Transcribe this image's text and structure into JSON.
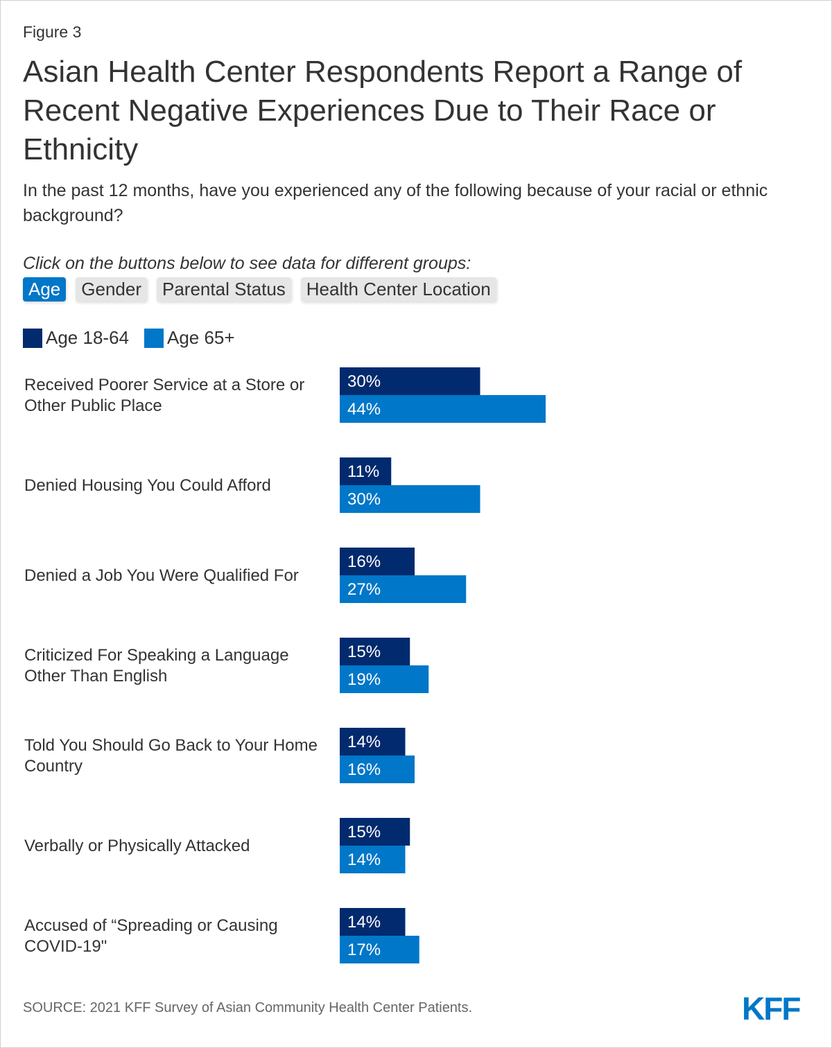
{
  "figure_label": "Figure 3",
  "title": "Asian Health Center Respondents Report a Range of Recent Negative Experiences Due to Their Race or Ethnicity",
  "subtitle": "In the past 12 months, have you experienced any of the following because of your racial or ethnic background?",
  "instruction": "Click on the buttons below to see data for different groups:",
  "buttons": [
    {
      "label": "Age",
      "active": true
    },
    {
      "label": "Gender",
      "active": false
    },
    {
      "label": "Parental Status",
      "active": false
    },
    {
      "label": "Health Center Location",
      "active": false
    }
  ],
  "source": "SOURCE: 2021 KFF Survey of Asian Community Health Center Patients.",
  "logo": "KFF",
  "colors": {
    "series1": "#022a6e",
    "series2": "#0077c8"
  },
  "chart_data": {
    "type": "bar",
    "orientation": "horizontal",
    "categories": [
      "Received Poorer Service at a Store or Other Public Place",
      "Denied Housing You Could Afford",
      "Denied a Job You Were Qualified For",
      "Criticized For Speaking a Language Other Than English",
      "Told You Should Go Back to Your Home Country",
      "Verbally or Physically Attacked",
      "Accused of “Spreading or Causing COVID-19\""
    ],
    "series": [
      {
        "name": "Age 18-64",
        "values": [
          30,
          11,
          16,
          15,
          14,
          15,
          14
        ]
      },
      {
        "name": "Age 65+",
        "values": [
          44,
          30,
          27,
          19,
          16,
          14,
          17
        ]
      }
    ],
    "value_suffix": "%",
    "xlim": [
      0,
      100
    ]
  }
}
